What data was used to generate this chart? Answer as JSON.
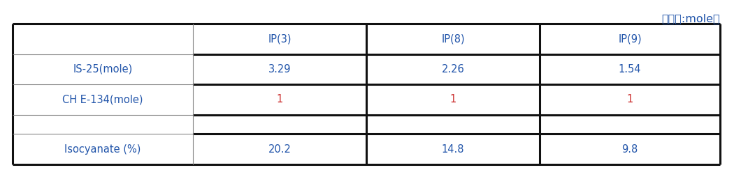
{
  "unit_label": "〈단위:mole〉",
  "header_row": [
    "",
    "IP(3)",
    "IP(8)",
    "IP(9)"
  ],
  "rows": [
    [
      "IS-25(mole)",
      "3.29",
      "2.26",
      "1.54"
    ],
    [
      "CH E-134(mole)",
      "1",
      "1",
      "1"
    ],
    [
      "",
      "",
      "",
      ""
    ],
    [
      "Isocyanate (%)",
      "20.2",
      "14.8",
      "9.8"
    ]
  ],
  "text_color_blue": "#2255aa",
  "text_color_red": "#cc3333",
  "border_color_thin": "#888888",
  "border_color_thick": "#111111",
  "background_color": "#ffffff",
  "font_size": 10.5,
  "unit_font_size": 11.5
}
